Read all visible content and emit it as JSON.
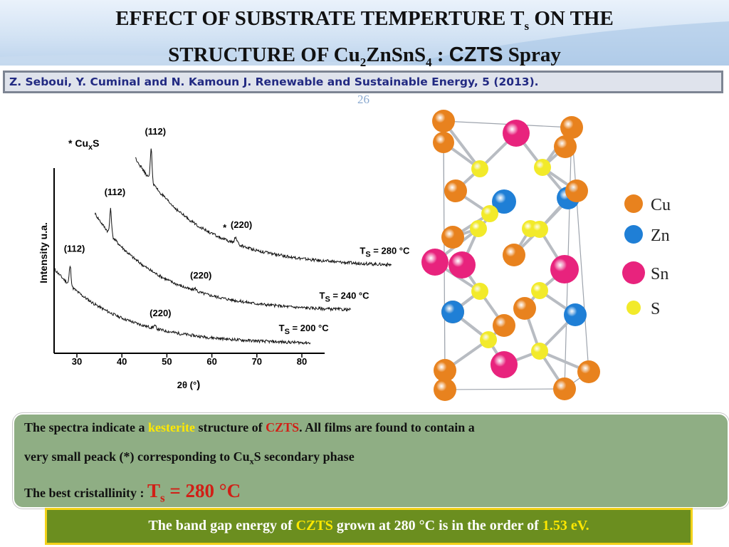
{
  "title": {
    "line1_main": "EFFECT OF SUBSTRATE TEMPERTURE T",
    "line1_sub": "s",
    "line1_end": " ON THE",
    "line2_a": "STRUCTURE OF Cu",
    "line2_sub1": "2",
    "line2_b": "ZnSnS",
    "line2_sub2": "4",
    "line2_c": " : ",
    "line2_czts": "CZTS",
    "line2_d": "  Spray"
  },
  "citation": "Z. Seboui, Y. Cuminal and N. Kamoun J. Renewable and Sustainable Energy, 5 (2013).",
  "slide_number": "26",
  "chart_data": {
    "type": "line",
    "ylabel": "Intensity u.a.",
    "xlabel_pre": "2θ (°",
    "xlabel_post": ")",
    "xlim": [
      25,
      85
    ],
    "x_ticks": [
      "30",
      "40",
      "50",
      "60",
      "70",
      "80"
    ],
    "legend_marker": "* Cu",
    "legend_marker_sub": "x",
    "legend_marker_end": "S",
    "series": [
      {
        "name_pre": "T",
        "name_sub": "S",
        "name_post": " = 200 °C",
        "x_start": 25,
        "x_end": 82,
        "y_start": 0.66,
        "y_end": 0.04,
        "peaks": [
          {
            "x": 28.5,
            "height": 0.16,
            "label": "(112)"
          },
          {
            "x": 47.3,
            "height": 0.02,
            "label": "(220)"
          }
        ]
      },
      {
        "name_pre": "T",
        "name_sub": "S",
        "name_post": " = 240 °C",
        "x_start": 34,
        "x_end": 91,
        "y_start": 1.12,
        "y_end": 0.31,
        "peaks": [
          {
            "x": 37.5,
            "height": 0.21,
            "label": "(112)"
          },
          {
            "x": 56.3,
            "height": 0.02,
            "label": "(220)"
          }
        ]
      },
      {
        "name_pre": "T",
        "name_sub": "S",
        "name_post": " = 280 °C",
        "x_start": 43,
        "x_end": 100,
        "y_start": 1.58,
        "y_end": 0.68,
        "peaks": [
          {
            "x": 46.5,
            "height": 0.27,
            "label": "(112)"
          },
          {
            "x": 65.3,
            "height": 0.05,
            "label": "(220)",
            "secondary_phase_marker": "*"
          }
        ]
      }
    ]
  },
  "crystal_legend": [
    "Cu",
    "Zn",
    "Sn",
    "S"
  ],
  "colors": {
    "cu": "#e8821e",
    "zn": "#1f7fd6",
    "sn": "#e8237d",
    "s": "#f2ea2a",
    "box_green": "#8fae84",
    "box_olive": "#6b8e1f"
  },
  "findings": {
    "l1_a": "The spectra indicate a ",
    "l1_kesterite": "kesterite",
    "l1_b": " structure of ",
    "l1_czts": "CZTS",
    "l1_c": ".  All films are found to contain a",
    "l2_a": "very small peack (*) corresponding to Cu",
    "l2_sub": "x",
    "l2_b": "S secondary phase",
    "l3_a": "The best cristallinity : ",
    "l3_ts": "T",
    "l3_ts_sub": "s",
    "l3_ts_val": " = 280 °C"
  },
  "bandgap": {
    "a": "The band gap energy of ",
    "czts": "CZTS",
    "b": " grown at 280 °C is in the order of ",
    "val": "1.53 eV."
  }
}
